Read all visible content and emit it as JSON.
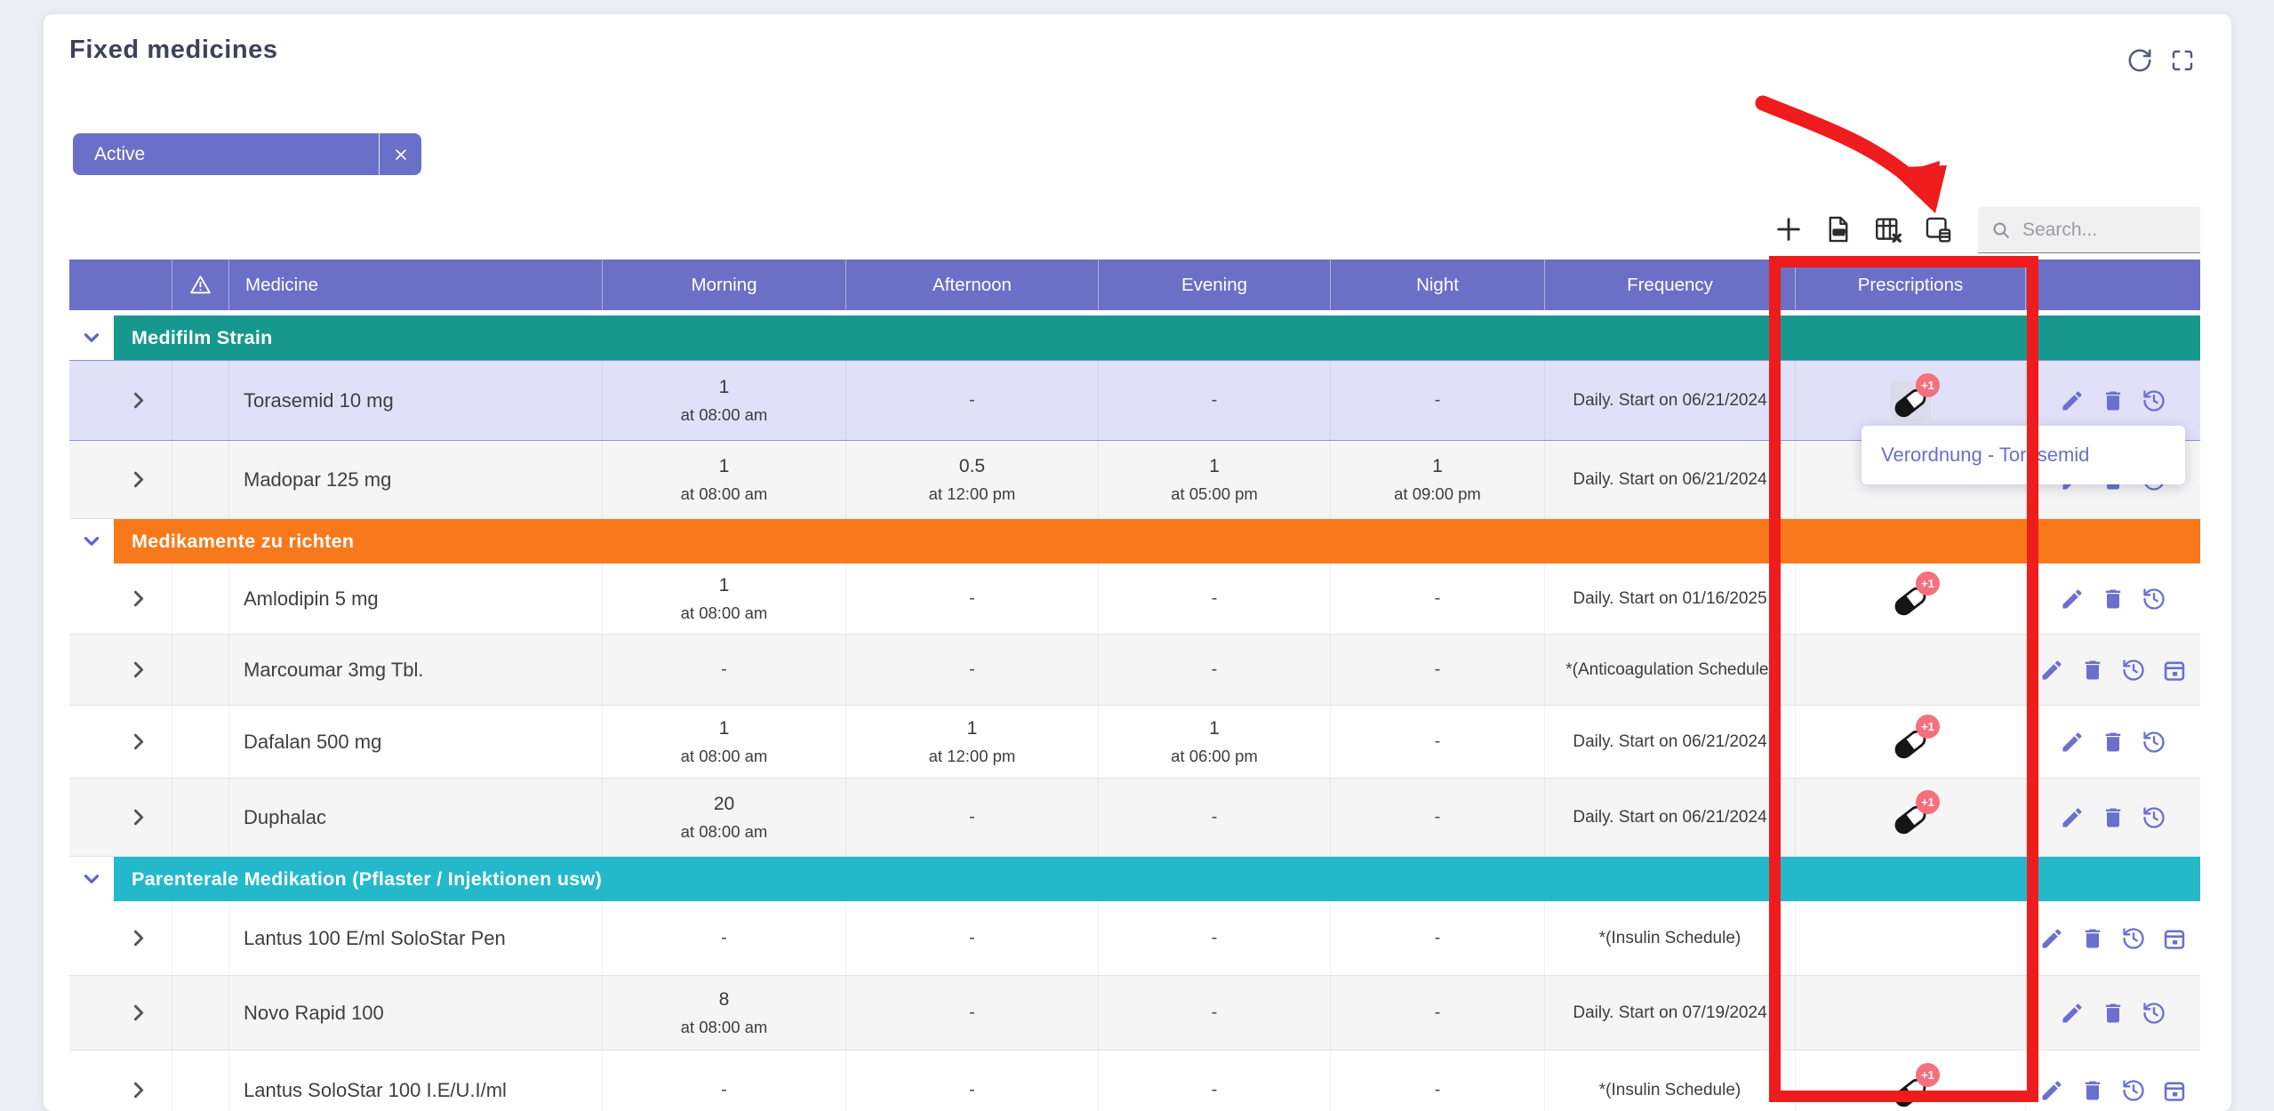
{
  "panel": {
    "title": "Fixed medicines"
  },
  "window_actions": {
    "refresh": "refresh",
    "fullscreen": "fullscreen"
  },
  "filter_chip": {
    "label": "Active",
    "close_symbol": "×"
  },
  "toolbar": {
    "buttons": [
      {
        "name": "add",
        "icon": "plus-icon"
      },
      {
        "name": "export-pdf",
        "icon": "pdf-file-icon"
      },
      {
        "name": "export-table",
        "icon": "table-delete-icon"
      },
      {
        "name": "prescription-card",
        "icon": "card-database-icon"
      }
    ]
  },
  "search": {
    "placeholder": "Search..."
  },
  "colors": {
    "accent_purple": "#6b6fc6",
    "group_teal": "#17988e",
    "group_orange": "#f8791b",
    "group_cyan": "#23b9cb",
    "selected_row": "#e0e1f9",
    "badge_red": "#f5707c",
    "annotation_red": "#ee1c1c"
  },
  "table": {
    "columns": [
      {
        "label": "",
        "icon": null
      },
      {
        "label": "",
        "icon": "warning-icon"
      },
      {
        "label": "Medicine",
        "icon": null
      },
      {
        "label": "Morning",
        "icon": null
      },
      {
        "label": "Afternoon",
        "icon": null
      },
      {
        "label": "Evening",
        "icon": null
      },
      {
        "label": "Night",
        "icon": null
      },
      {
        "label": "Frequency",
        "icon": null
      },
      {
        "label": "Prescriptions",
        "icon": null
      },
      {
        "label": "",
        "icon": null
      }
    ],
    "groups": [
      {
        "label": "Medifilm Strain",
        "color": "#17988e",
        "rows": [
          {
            "name": "Torasemid 10 mg",
            "selected": true,
            "doses": [
              {
                "value": "1",
                "time": "at 08:00 am"
              },
              {
                "value": "-"
              },
              {
                "value": "-"
              },
              {
                "value": "-"
              }
            ],
            "frequency": "Daily. Start on 06/21/2024",
            "prescription": {
              "badge": "+1",
              "highlighted": true
            },
            "actions": [
              "edit",
              "delete",
              "history"
            ]
          },
          {
            "name": "Madopar 125 mg",
            "selected": false,
            "doses": [
              {
                "value": "1",
                "time": "at 08:00 am"
              },
              {
                "value": "0.5",
                "time": "at 12:00 pm"
              },
              {
                "value": "1",
                "time": "at 05:00 pm"
              },
              {
                "value": "1",
                "time": "at 09:00 pm"
              }
            ],
            "frequency": "Daily. Start on 06/21/2024",
            "prescription": null,
            "actions": [
              "edit",
              "delete",
              "history"
            ]
          }
        ]
      },
      {
        "label": "Medikamente zu richten",
        "color": "#f8791b",
        "rows": [
          {
            "name": "Amlodipin 5 mg",
            "selected": false,
            "doses": [
              {
                "value": "1",
                "time": "at 08:00 am"
              },
              {
                "value": "-"
              },
              {
                "value": "-"
              },
              {
                "value": "-"
              }
            ],
            "frequency": "Daily. Start on 01/16/2025",
            "prescription": {
              "badge": "+1",
              "highlighted": false
            },
            "actions": [
              "edit",
              "delete",
              "history"
            ]
          },
          {
            "name": "Marcoumar 3mg Tbl.",
            "selected": false,
            "doses": [
              {
                "value": "-"
              },
              {
                "value": "-"
              },
              {
                "value": "-"
              },
              {
                "value": "-"
              }
            ],
            "frequency": "*(Anticoagulation Schedule)",
            "prescription": null,
            "actions": [
              "edit",
              "delete",
              "history",
              "calendar"
            ]
          },
          {
            "name": "Dafalan 500 mg",
            "selected": false,
            "doses": [
              {
                "value": "1",
                "time": "at 08:00 am"
              },
              {
                "value": "1",
                "time": "at 12:00 pm"
              },
              {
                "value": "1",
                "time": "at 06:00 pm"
              },
              {
                "value": "-"
              }
            ],
            "frequency": "Daily. Start on 06/21/2024",
            "prescription": {
              "badge": "+1",
              "highlighted": false
            },
            "actions": [
              "edit",
              "delete",
              "history"
            ]
          },
          {
            "name": "Duphalac",
            "selected": false,
            "doses": [
              {
                "value": "20",
                "time": "at 08:00 am"
              },
              {
                "value": "-"
              },
              {
                "value": "-"
              },
              {
                "value": "-"
              }
            ],
            "frequency": "Daily. Start on 06/21/2024",
            "prescription": {
              "badge": "+1",
              "highlighted": false
            },
            "actions": [
              "edit",
              "delete",
              "history"
            ]
          }
        ]
      },
      {
        "label": "Parenterale Medikation (Pflaster / Injektionen usw)",
        "color": "#23b9cb",
        "rows": [
          {
            "name": "Lantus 100 E/ml SoloStar Pen",
            "selected": false,
            "doses": [
              {
                "value": "-"
              },
              {
                "value": "-"
              },
              {
                "value": "-"
              },
              {
                "value": "-"
              }
            ],
            "frequency": "*(Insulin Schedule)",
            "prescription": null,
            "actions": [
              "edit",
              "delete",
              "history",
              "calendar"
            ]
          },
          {
            "name": "Novo Rapid 100",
            "selected": false,
            "doses": [
              {
                "value": "8",
                "time": "at 08:00 am"
              },
              {
                "value": "-"
              },
              {
                "value": "-"
              },
              {
                "value": "-"
              }
            ],
            "frequency": "Daily. Start on 07/19/2024",
            "prescription": null,
            "actions": [
              "edit",
              "delete",
              "history"
            ]
          },
          {
            "name": "Lantus SoloStar 100 I.E/U.I/ml",
            "selected": false,
            "doses": [
              {
                "value": "-"
              },
              {
                "value": "-"
              },
              {
                "value": "-"
              },
              {
                "value": "-"
              }
            ],
            "frequency": "*(Insulin Schedule)",
            "prescription": {
              "badge": "+1",
              "highlighted": false
            },
            "actions": [
              "edit",
              "delete",
              "history",
              "calendar"
            ]
          }
        ]
      }
    ]
  },
  "tooltip": {
    "text": "Verordnung - Torasemid"
  }
}
